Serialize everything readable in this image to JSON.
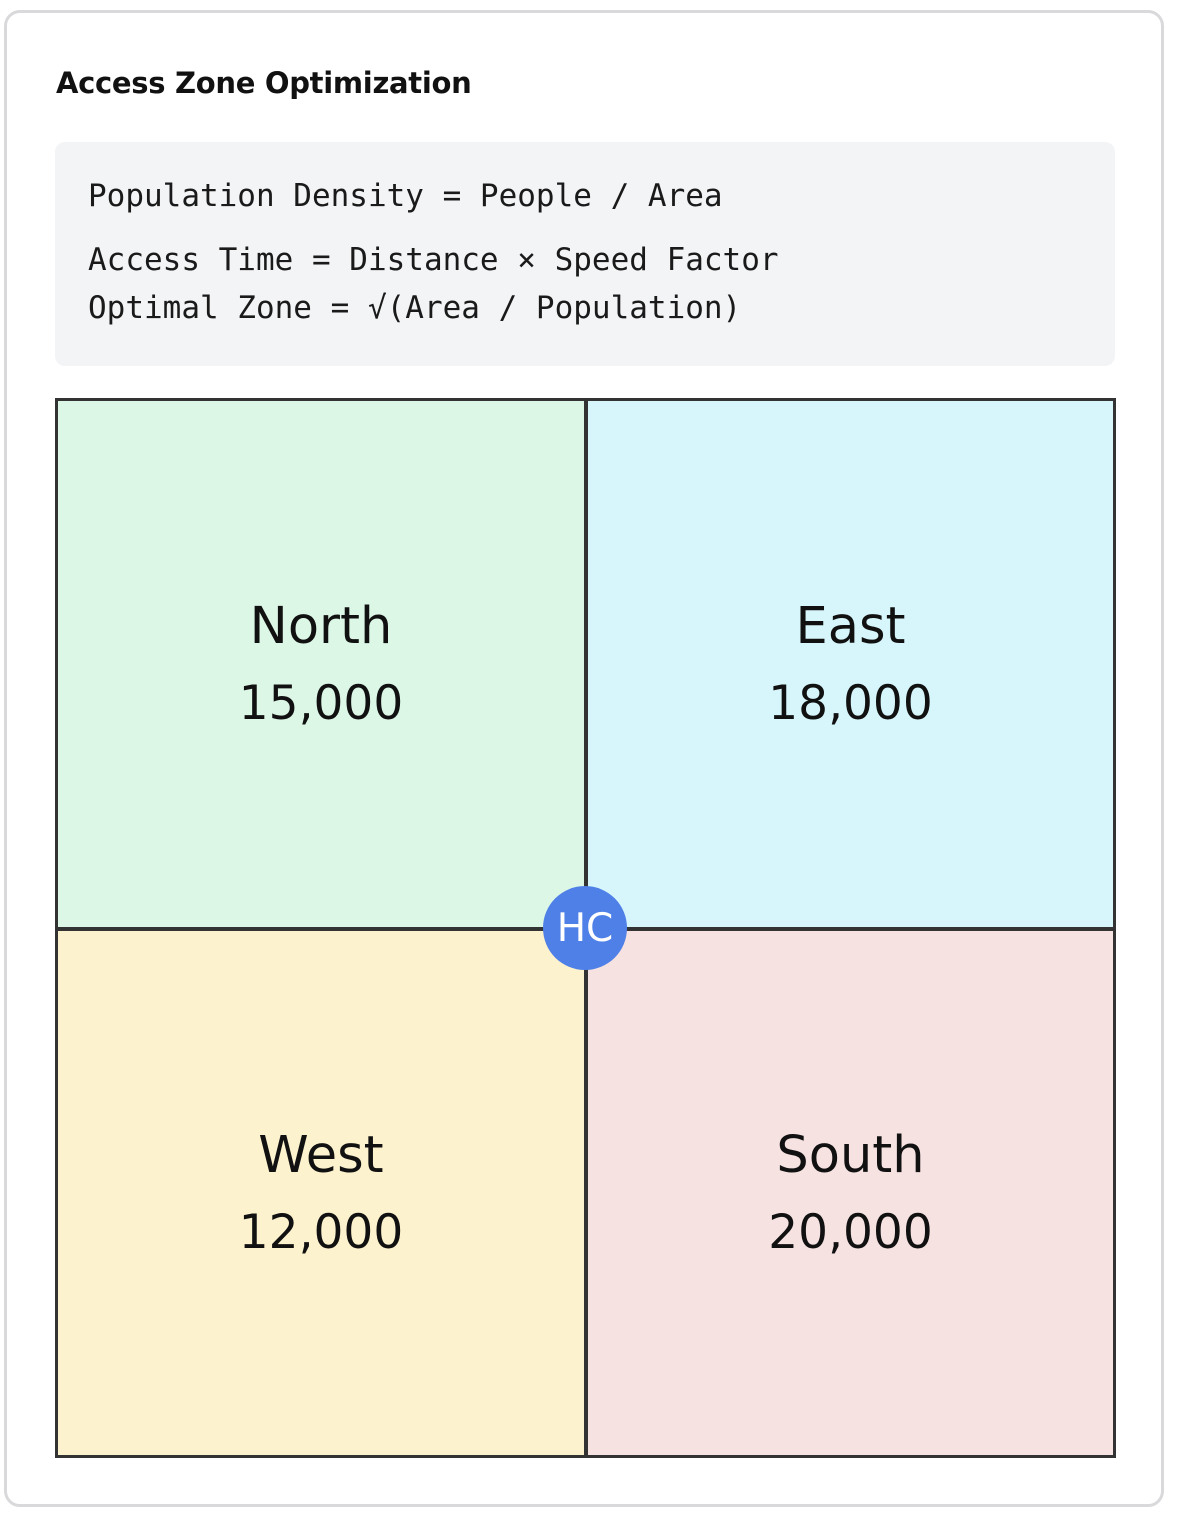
{
  "title": "Access Zone Optimization",
  "formulas": [
    "Population Density = People / Area",
    "Access Time = Distance × Speed Factor",
    "Optimal Zone = √(Area / Population)"
  ],
  "zones": [
    {
      "name": "North",
      "population": "15,000",
      "color": "#dcf7e6"
    },
    {
      "name": "East",
      "population": "18,000",
      "color": "#d6f6fb"
    },
    {
      "name": "West",
      "population": "12,000",
      "color": "#fcf2cd"
    },
    {
      "name": "South",
      "population": "20,000",
      "color": "#f7e2e2"
    }
  ],
  "hub": {
    "label": "HC",
    "color": "#4f80e8"
  }
}
